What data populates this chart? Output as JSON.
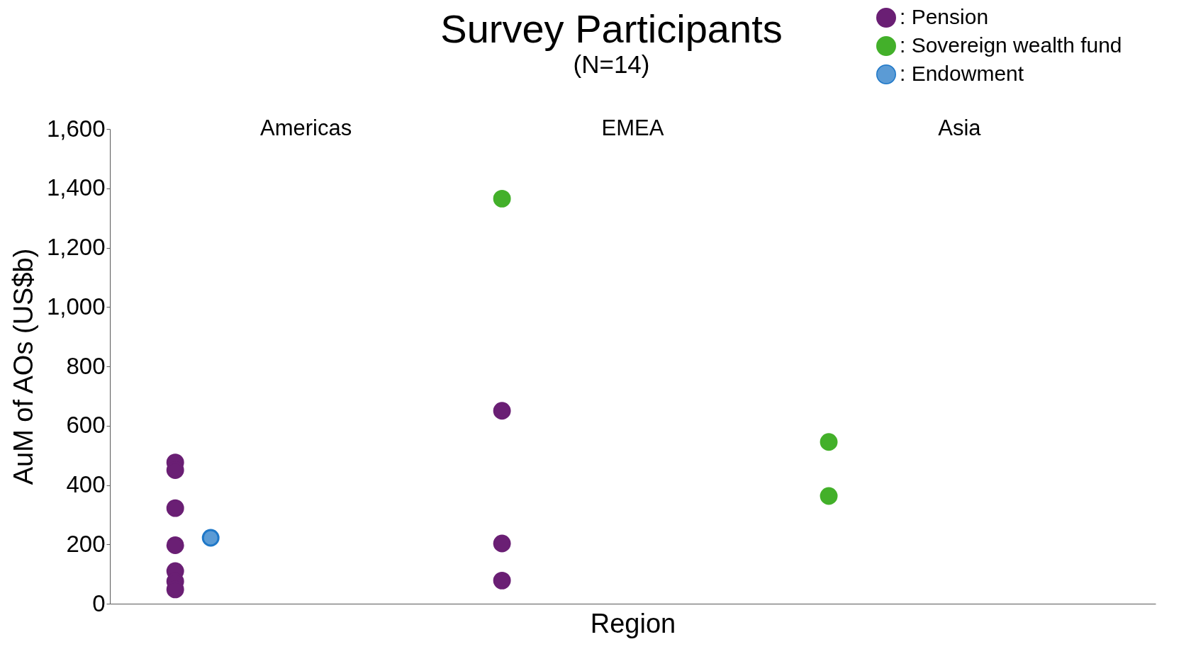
{
  "chart_data": {
    "type": "scatter",
    "title": "Survey Participants",
    "subtitle": "(N=14)",
    "xlabel": "Region",
    "ylabel": "AuM of AOs (US$b)",
    "categories": [
      "Americas",
      "EMEA",
      "Asia"
    ],
    "series": [
      {
        "name": ": Pension",
        "color": "#6a1f74",
        "x": [
          "Americas",
          "Americas",
          "Americas",
          "Americas",
          "Americas",
          "Americas",
          "Americas",
          "EMEA",
          "EMEA",
          "EMEA"
        ],
        "values": [
          476,
          450,
          322,
          197,
          110,
          75,
          48,
          650,
          203,
          78
        ]
      },
      {
        "name": ": Sovereign wealth fund",
        "color": "#43b02a",
        "x": [
          "EMEA",
          "Asia",
          "Asia"
        ],
        "values": [
          1365,
          545,
          363
        ]
      },
      {
        "name": ": Endowment",
        "color": "#5b9bd5",
        "x": [
          "Americas"
        ],
        "values": [
          222
        ]
      }
    ],
    "ylim": [
      0,
      1600
    ],
    "yticks": [
      0,
      200,
      400,
      600,
      800,
      {
        "value": 1000,
        "label": "1,000"
      },
      {
        "value": 1200,
        "label": "1,200"
      },
      {
        "value": 1400,
        "label": "1,400"
      },
      {
        "value": 1600,
        "label": "1,600"
      }
    ],
    "grid": false,
    "legend": "top right",
    "marker": "circle"
  }
}
